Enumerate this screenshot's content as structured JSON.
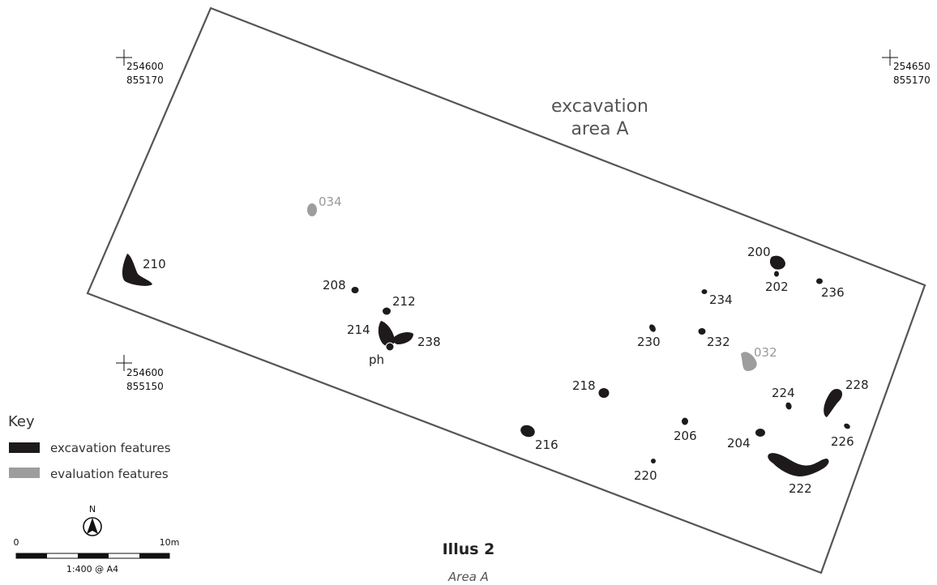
{
  "area_label": {
    "line1": "excavation",
    "line2": "area A"
  },
  "grid_points": [
    {
      "easting": "254600",
      "northing": "855170"
    },
    {
      "easting": "254650",
      "northing": "855170"
    },
    {
      "easting": "254600",
      "northing": "855150"
    }
  ],
  "feature_labels": {
    "f200": "200",
    "f202": "202",
    "f204": "204",
    "f206": "206",
    "f208": "208",
    "f210": "210",
    "f212": "212",
    "f214": "214",
    "f216": "216",
    "f218": "218",
    "f220": "220",
    "f222": "222",
    "f224": "224",
    "f226": "226",
    "f228": "228",
    "f230": "230",
    "f232": "232",
    "f234": "234",
    "f236": "236",
    "f238": "238",
    "ph": "ph"
  },
  "eval_labels": {
    "e032": "032",
    "e034": "034"
  },
  "colors": {
    "excavation": "#1e1a1b",
    "evaluation": "#9d9d9d",
    "outline": "#555555"
  },
  "key": {
    "title": "Key",
    "items": [
      {
        "label": "excavation features"
      },
      {
        "label": "evaluation features"
      }
    ]
  },
  "north_arrow": {
    "label": "N"
  },
  "scale_bar": {
    "start": "0",
    "end": "10m",
    "ratio": "1:400 @ A4"
  },
  "caption": {
    "title": "Illus 2",
    "subtitle": "Area A"
  }
}
